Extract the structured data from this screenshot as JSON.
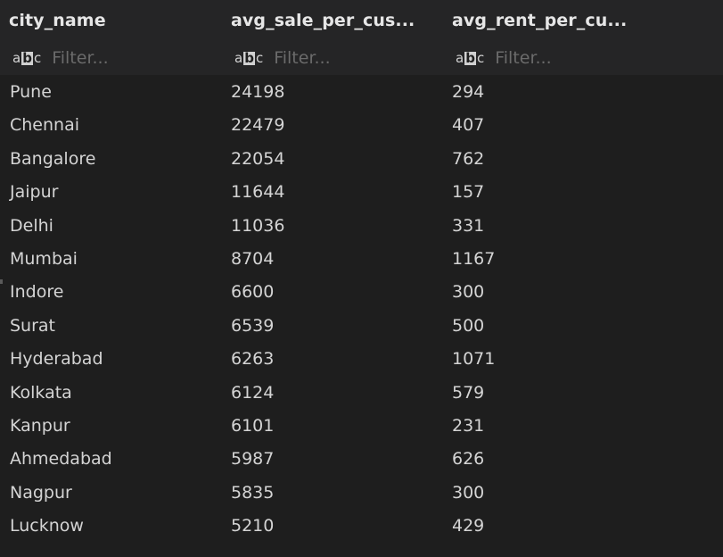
{
  "table": {
    "columns": [
      {
        "title": "city_name",
        "filter_placeholder": "Filter..."
      },
      {
        "title": "avg_sale_per_cus...",
        "filter_placeholder": "Filter..."
      },
      {
        "title": "avg_rent_per_cu...",
        "filter_placeholder": "Filter..."
      }
    ],
    "filter_icon": "abc-text-type-icon",
    "rows": [
      [
        "Pune",
        "24198",
        "294"
      ],
      [
        "Chennai",
        "22479",
        "407"
      ],
      [
        "Bangalore",
        "22054",
        "762"
      ],
      [
        "Jaipur",
        "11644",
        "157"
      ],
      [
        "Delhi",
        "11036",
        "331"
      ],
      [
        "Mumbai",
        "8704",
        "1167"
      ],
      [
        "Indore",
        "6600",
        "300"
      ],
      [
        "Surat",
        "6539",
        "500"
      ],
      [
        "Hyderabad",
        "6263",
        "1071"
      ],
      [
        "Kolkata",
        "6124",
        "579"
      ],
      [
        "Kanpur",
        "6101",
        "231"
      ],
      [
        "Ahmedabad",
        "5987",
        "626"
      ],
      [
        "Nagpur",
        "5835",
        "300"
      ],
      [
        "Lucknow",
        "5210",
        "429"
      ]
    ]
  },
  "colors": {
    "background": "#1e1e1e",
    "header_background": "#252526",
    "text": "#d4d4d4",
    "placeholder": "#6b6b6b"
  }
}
